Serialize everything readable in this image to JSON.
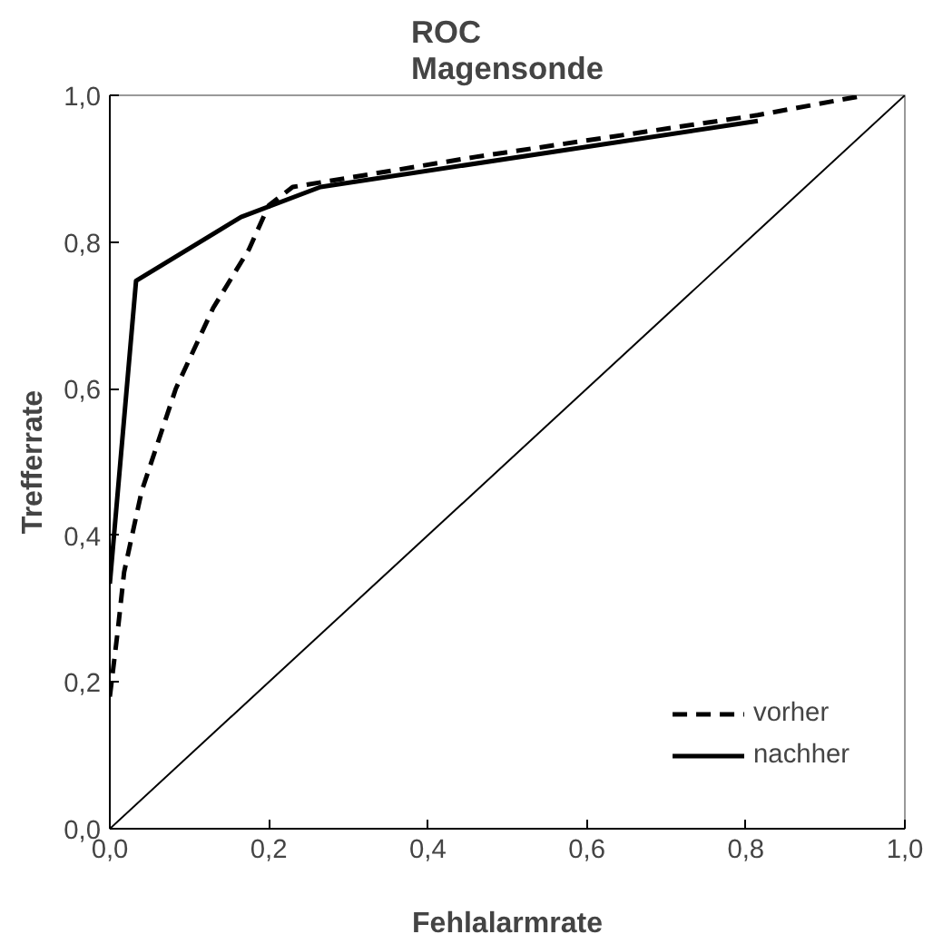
{
  "chart_data": {
    "type": "line",
    "title": "ROC\nMagensonde",
    "xlabel": "Fehlalarmrate",
    "ylabel": "Trefferrate",
    "xlim": [
      0,
      1
    ],
    "ylim": [
      0,
      1
    ],
    "xticks": [
      {
        "value": 0,
        "label": "0,0"
      },
      {
        "value": 0.2,
        "label": "0,2"
      },
      {
        "value": 0.4,
        "label": "0,4"
      },
      {
        "value": 0.6,
        "label": "0,6"
      },
      {
        "value": 0.8,
        "label": "0,8"
      },
      {
        "value": 1,
        "label": "1,0"
      }
    ],
    "yticks": [
      {
        "value": 0,
        "label": "0,0"
      },
      {
        "value": 0.2,
        "label": "0,2"
      },
      {
        "value": 0.4,
        "label": "0,4"
      },
      {
        "value": 0.6,
        "label": "0,6"
      },
      {
        "value": 0.8,
        "label": "0,8"
      },
      {
        "value": 1,
        "label": "1,0"
      }
    ],
    "grid": false,
    "legend": "bottom right",
    "marker": "none",
    "series": [
      {
        "name": "vorher",
        "color": "#000000",
        "line_style": "dashed",
        "x": [
          0.0,
          0.01,
          0.018,
          0.04,
          0.083,
          0.13,
          0.175,
          0.2,
          0.23,
          0.46,
          0.815,
          0.95
        ],
        "values": [
          0.18,
          0.27,
          0.35,
          0.46,
          0.6,
          0.71,
          0.79,
          0.85,
          0.875,
          0.916,
          0.973,
          1.0
        ]
      },
      {
        "name": "nachher",
        "color": "#000000",
        "line_style": "solid",
        "x": [
          0.0,
          0.033,
          0.165,
          0.265,
          0.815
        ],
        "values": [
          0.334,
          0.747,
          0.834,
          0.875,
          0.965
        ]
      },
      {
        "color": "#000000",
        "line_style": "solid",
        "x": [
          0,
          1
        ],
        "values": [
          0,
          1
        ]
      }
    ]
  }
}
